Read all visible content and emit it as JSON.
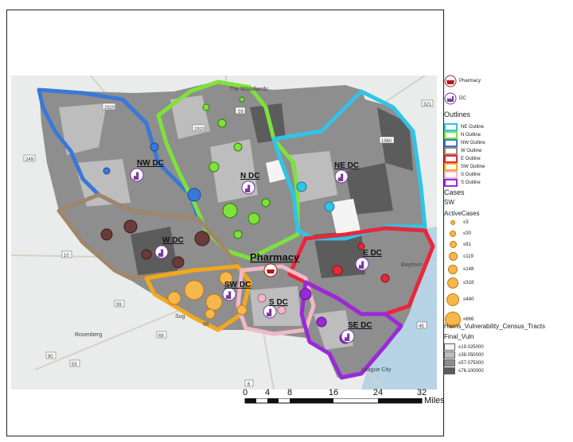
{
  "map": {
    "place_labels": {
      "woodlands": "The Woodlands",
      "sugar": "Sug",
      "missouri": "Mi",
      "rosenberg": "Rosenberg",
      "league_city": "League City",
      "baytown": "Baytown"
    },
    "road_shields": {
      "r2920a": "2920",
      "r2920b": "2920",
      "r59n": "59",
      "r321": "321",
      "r1960": "1960",
      "r249": "249",
      "r10": "10",
      "r99": "99",
      "r69": "69",
      "r90": "90",
      "r59s": "59",
      "r6": "6",
      "r45": "45"
    },
    "facilities": {
      "nw": "NW DC",
      "n": "N DC",
      "ne": "NE DC",
      "w": "W DC",
      "e": "E DC",
      "pharmacy": "Pharmacy",
      "sw": "SW DC",
      "s": "S DC",
      "se": "SE DC"
    },
    "outline_colors": {
      "ne": "#2fc4e8",
      "n": "#7ee23a",
      "nw": "#3a78d8",
      "w": "#a0876a",
      "e": "#e8283a",
      "sw": "#f4a81c",
      "s": "#f0b8c8",
      "se": "#9a2ad8"
    },
    "case_color": "#f6b84c",
    "vuln_colors": [
      "#f4f4f4",
      "#bdbdbd",
      "#8e8e8e",
      "#5c5c5c"
    ]
  },
  "legend": {
    "pharmacy_label": "Pharmacy",
    "dc_label": "DC",
    "outlines_title": "Outlines",
    "outlines": [
      {
        "label": "NE Outline",
        "color": "#2fc4e8"
      },
      {
        "label": "N Outline",
        "color": "#7ee23a"
      },
      {
        "label": "NW Outline",
        "color": "#3a78d8"
      },
      {
        "label": "W Outline",
        "color": "#a0876a"
      },
      {
        "label": "E Outline",
        "color": "#e8283a"
      },
      {
        "label": "SW Outline",
        "color": "#f4a81c"
      },
      {
        "label": "S Outline",
        "color": "#f0b8c8"
      },
      {
        "label": "S Outline",
        "color": "#9a2ad8"
      }
    ],
    "cases_title": "Cases",
    "cases_sub": "SW",
    "active_title": "ActiveCases",
    "active_classes": [
      "≤3",
      "≤30",
      "≤81",
      "≤119",
      "≤148",
      "≤318",
      "≤440",
      "≤666"
    ],
    "vuln_title": "Harris_Vulnerability_Census_Tracts",
    "vuln_sub": "Final_Vuln",
    "vuln_classes": [
      {
        "label": "≤19.025000",
        "color": "#f4f4f4"
      },
      {
        "label": "≤38.050000",
        "color": "#bdbdbd"
      },
      {
        "label": "≤57.075000",
        "color": "#8e8e8e"
      },
      {
        "label": "≤76.100000",
        "color": "#5c5c5c"
      }
    ]
  },
  "scale_bar": {
    "ticks": [
      "0",
      "4",
      "8",
      "16",
      "24",
      "32"
    ],
    "unit": "Miles"
  }
}
